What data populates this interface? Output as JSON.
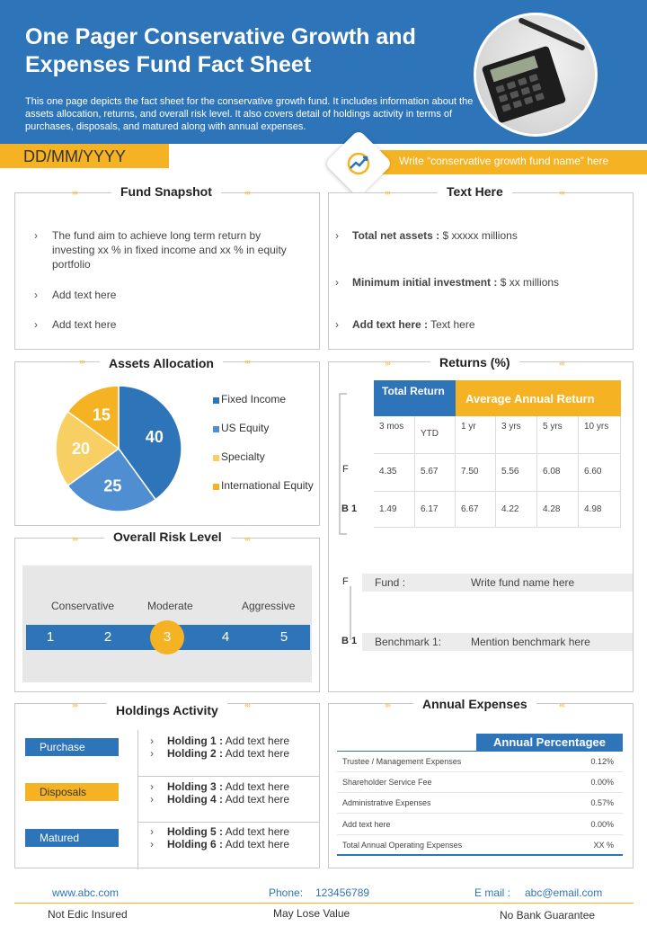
{
  "header": {
    "title": "One Pager Conservative Growth and Expenses Fund Fact Sheet",
    "description": "This one page depicts the fact sheet for the conservative growth fund. It includes information about the assets allocation, returns, and overall risk level. It also covers detail of holdings activity in terms of purchases, disposals, and matured along with annual expenses.",
    "date": "DD/MM/YYYY",
    "fund_name_placeholder": "Write “conservative growth fund name” here"
  },
  "colors": {
    "primary": "#2e74b8",
    "accent": "#f5b324",
    "light_accent": "#f7cf62",
    "mid_blue": "#4f8fd1"
  },
  "fund_snapshot": {
    "title": "Fund Snapshot",
    "items": [
      "The fund aim to achieve long term return by investing xx % in fixed income and xx % in equity portfolio",
      "Add text here",
      "Add text here"
    ]
  },
  "text_here": {
    "title": "Text Here",
    "items": [
      {
        "label": "Total net assets  :",
        "value": " $ xxxxx millions"
      },
      {
        "label": "Minimum initial investment :",
        "value": " $ xx millions"
      },
      {
        "label": "Add text here :",
        "value": " Text here"
      }
    ]
  },
  "assets_allocation": {
    "title": "Assets Allocation",
    "chart_data": {
      "type": "pie",
      "categories": [
        "Fixed Income",
        "US Equity",
        "Specialty",
        "International Equity"
      ],
      "values": [
        40,
        25,
        20,
        15
      ],
      "colors": [
        "#2e74b8",
        "#4f8fd1",
        "#f7cf62",
        "#f5b324"
      ]
    }
  },
  "risk": {
    "title": "Overall Risk Level",
    "labels": [
      "Conservative",
      "Moderate",
      "Aggressive"
    ],
    "levels": [
      "1",
      "2",
      "3",
      "4",
      "5"
    ],
    "selected": "3"
  },
  "returns": {
    "title": "Returns (%)",
    "total_return": "Total Return",
    "avg_annual": "Average Annual Return",
    "columns": [
      "3 mos",
      "YTD",
      "1  yr",
      "3 yrs",
      "5 yrs",
      "10 yrs"
    ],
    "row_labels": [
      "F",
      "B 1"
    ],
    "rows": [
      [
        "4.35",
        "5.67",
        "7.50",
        "5.56",
        "6.08",
        "6.60"
      ],
      [
        "1.49",
        "6.17",
        "6.67",
        "4.22",
        "4.28",
        "4.98"
      ]
    ],
    "fund_key": "F",
    "fund_label": "Fund :",
    "fund_value": "Write fund name here",
    "bench_key": "B 1",
    "bench_label": "Benchmark 1:",
    "bench_value": "Mention benchmark here"
  },
  "holdings": {
    "title": "Holdings Activity",
    "groups": [
      {
        "label": "Purchase",
        "lines": [
          [
            "Holding  1 :",
            " Add text here"
          ],
          [
            "Holding  2 :",
            " Add text here"
          ]
        ]
      },
      {
        "label": "Disposals",
        "lines": [
          [
            "Holding  3 :",
            " Add text here"
          ],
          [
            "Holding  4 :",
            " Add text here"
          ]
        ]
      },
      {
        "label": "Matured",
        "lines": [
          [
            "Holding  5 :",
            " Add text here"
          ],
          [
            "Holding  6 :",
            " Add text here"
          ]
        ]
      }
    ]
  },
  "annual_expenses": {
    "title": "Annual Expenses",
    "header": "Annual Percentagee",
    "rows": [
      [
        "Trustee / Management Expenses",
        "0.12%"
      ],
      [
        "Shareholder Service Fee",
        "0.00%"
      ],
      [
        "Administrative Expenses",
        "0.57%"
      ],
      [
        "Add text here",
        "0.00%"
      ],
      [
        "Total Annual Operating Expenses",
        "XX  %"
      ]
    ]
  },
  "footer": {
    "website": "www.abc.com",
    "phone_label": "Phone:",
    "phone": "123456789",
    "email_label": "E mail :",
    "email": "abc@email.com",
    "notes": [
      "Not Edic Insured",
      "May Lose Value",
      "No Bank Guarantee"
    ]
  }
}
